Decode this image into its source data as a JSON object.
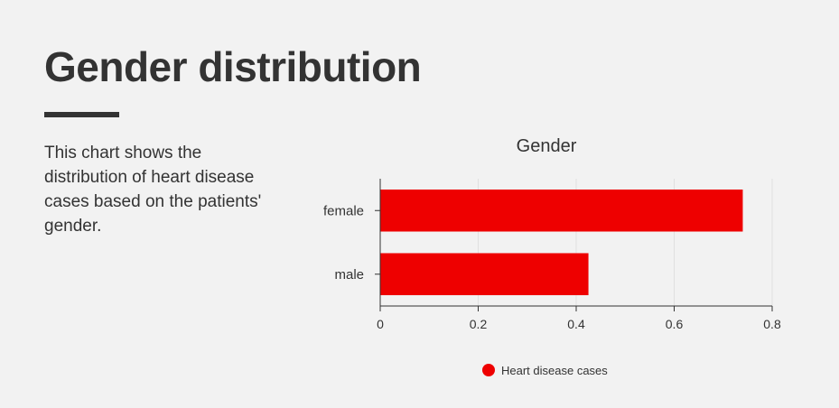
{
  "page": {
    "title": "Gender distribution",
    "description": "This chart shows the distribution of heart disease cases based on the patients' gender."
  },
  "chart_data": {
    "type": "bar",
    "orientation": "horizontal",
    "title": "Gender",
    "categories": [
      "female",
      "male"
    ],
    "series": [
      {
        "name": "Heart disease cases",
        "values": [
          0.74,
          0.425
        ],
        "color": "#ee0000"
      }
    ],
    "xlim": [
      0,
      0.8
    ],
    "xticks": [
      "0",
      "0.2",
      "0.4",
      "0.6",
      "0.8"
    ],
    "xtick_values": [
      0,
      0.2,
      0.4,
      0.6,
      0.8
    ],
    "grid": true,
    "legend_placement": "bottom-center"
  }
}
